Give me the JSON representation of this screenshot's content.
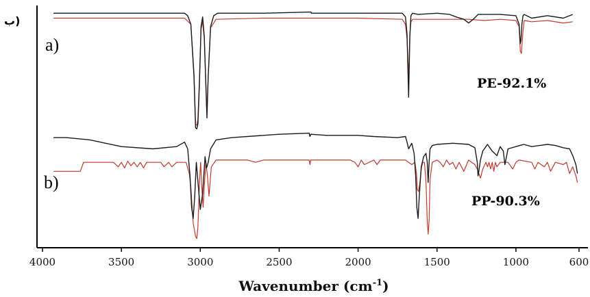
{
  "figure": {
    "corner_mark": "ب)"
  },
  "chart_data": {
    "type": "line",
    "title": "",
    "xlabel": "Wavenumber (cm-1)",
    "xlabel_main": "Wavenumber (cm",
    "xlabel_sup": "-1",
    "xlabel_close": ")",
    "ylabel": "",
    "x_reversed": true,
    "xlim": [
      4000,
      600
    ],
    "x_ticks": [
      4000,
      3500,
      3000,
      2500,
      2000,
      1500,
      1000,
      600
    ],
    "grid": false,
    "legend": "none",
    "panels": [
      {
        "label": "a)",
        "sample": "PE-92.1%",
        "series": [
          {
            "role": "black",
            "color": "#1a1a1a",
            "x": [
              3930,
              3700,
              3400,
              3100,
              3080,
              3060,
              3040,
              3030,
              3022,
              3015,
              3005,
              2995,
              2985,
              2975,
              2965,
              2958,
              2950,
              2935,
              2915,
              2890,
              2850,
              2600,
              2300,
              2295,
              2200,
              2000,
              1800,
              1720,
              1700,
              1690,
              1685,
              1680,
              1672,
              1665,
              1655,
              1620,
              1500,
              1420,
              1380,
              1330,
              1300,
              1270,
              1240,
              1100,
              1000,
              980,
              972,
              968,
              962,
              955,
              948,
              900,
              800,
              700,
              640
            ],
            "y": [
              97,
              97,
              97,
              97,
              95,
              88,
              45,
              3,
              2,
              6,
              40,
              86,
              94,
              78,
              38,
              11,
              45,
              86,
              95,
              97,
              97,
              97,
              98,
              97,
              97,
              97,
              97,
              97,
              94,
              80,
              55,
              28,
              78,
              95,
              97,
              96,
              97,
              96,
              94,
              92,
              89,
              92,
              96,
              96,
              95,
              88,
              72,
              75,
              88,
              95,
              96,
              93,
              95,
              93,
              96
            ]
          },
          {
            "role": "red",
            "color": "#c0392b",
            "x": [
              3930,
              3700,
              3400,
              3100,
              3060,
              3040,
              3030,
              3022,
              3015,
              3005,
              2995,
              2985,
              2975,
              2965,
              2958,
              2950,
              2935,
              2900,
              2600,
              2300,
              2000,
              1720,
              1700,
              1690,
              1680,
              1672,
              1665,
              1655,
              1500,
              1300,
              1200,
              1100,
              1000,
              980,
              972,
              965,
              955,
              948,
              900,
              800,
              700,
              640
            ],
            "y": [
              93,
              93,
              93,
              93,
              88,
              48,
              6,
              5,
              10,
              44,
              84,
              90,
              76,
              40,
              15,
              45,
              85,
              92,
              93,
              93,
              93,
              92,
              88,
              76,
              44,
              80,
              90,
              92,
              92,
              92,
              91,
              92,
              91,
              86,
              66,
              64,
              82,
              91,
              90,
              91,
              89,
              90
            ]
          }
        ]
      },
      {
        "label": "b)",
        "sample": "PP-90.3%",
        "series": [
          {
            "role": "black",
            "color": "#1a1a1a",
            "x": [
              3930,
              3850,
              3700,
              3500,
              3300,
              3150,
              3100,
              3080,
              3065,
              3055,
              3045,
              3035,
              3025,
              3012,
              3000,
              2985,
              2970,
              2960,
              2950,
              2935,
              2900,
              2800,
              2500,
              2310,
              2305,
              2300,
              2200,
              2000,
              1900,
              1750,
              1700,
              1690,
              1680,
              1660,
              1645,
              1635,
              1628,
              1620,
              1612,
              1600,
              1585,
              1570,
              1562,
              1556,
              1550,
              1544,
              1530,
              1500,
              1400,
              1300,
              1260,
              1245,
              1240,
              1235,
              1225,
              1210,
              1180,
              1150,
              1120,
              1100,
              1080,
              1070,
              1060,
              1050,
              1000,
              950,
              900,
              850,
              800,
              750,
              700,
              660,
              640,
              620,
              610
            ],
            "y": [
              92,
              92,
              90,
              84,
              82,
              84,
              88,
              82,
              58,
              30,
              20,
              40,
              70,
              48,
              28,
              42,
              75,
              65,
              70,
              82,
              90,
              92,
              95,
              96,
              93,
              95,
              94,
              94,
              93,
              92,
              93,
              88,
              82,
              87,
              78,
              58,
              30,
              20,
              40,
              66,
              75,
              78,
              70,
              52,
              70,
              82,
              85,
              86,
              87,
              86,
              83,
              70,
              58,
              62,
              72,
              80,
              86,
              80,
              76,
              84,
              80,
              68,
              75,
              82,
              84,
              86,
              84,
              85,
              86,
              85,
              83,
              82,
              76,
              68,
              60
            ]
          },
          {
            "role": "red",
            "color": "#c0392b",
            "x": [
              3930,
              3760,
              3740,
              3550,
              3520,
              3500,
              3480,
              3460,
              3440,
              3420,
              3400,
              3380,
              3360,
              3340,
              3320,
              3250,
              3230,
              3200,
              3180,
              3150,
              3090,
              3070,
              3060,
              3045,
              3030,
              3022,
              3015,
              3005,
              2998,
              2990,
              2982,
              2975,
              2965,
              2955,
              2945,
              2930,
              2900,
              2700,
              2650,
              2600,
              2310,
              2305,
              2300,
              2050,
              2020,
              2000,
              1980,
              1960,
              1900,
              1880,
              1860,
              1700,
              1680,
              1660,
              1640,
              1630,
              1625,
              1618,
              1610,
              1598,
              1590,
              1580,
              1570,
              1562,
              1556,
              1550,
              1544,
              1530,
              1500,
              1480,
              1460,
              1440,
              1420,
              1400,
              1380,
              1360,
              1330,
              1300,
              1280,
              1260,
              1245,
              1235,
              1225,
              1210,
              1190,
              1180,
              1170,
              1160,
              1150,
              1140,
              1130,
              1120,
              1100,
              1050,
              1020,
              1000,
              980,
              900,
              880,
              860,
              820,
              800,
              780,
              750,
              700,
              680,
              660,
              640,
              620,
              610
            ],
            "y": [
              62,
              62,
              70,
              70,
              66,
              70,
              65,
              71,
              67,
              70,
              66,
              70,
              65,
              70,
              70,
              70,
              66,
              70,
              66,
              70,
              70,
              60,
              48,
              16,
              4,
              2,
              12,
              52,
              70,
              46,
              30,
              48,
              70,
              58,
              40,
              66,
              72,
              72,
              70,
              72,
              72,
              68,
              72,
              72,
              70,
              66,
              72,
              68,
              72,
              68,
              72,
              72,
              70,
              68,
              70,
              60,
              46,
              44,
              50,
              66,
              70,
              70,
              54,
              18,
              6,
              18,
              55,
              70,
              72,
              70,
              66,
              72,
              68,
              70,
              64,
              70,
              62,
              72,
              70,
              68,
              64,
              60,
              56,
              64,
              70,
              66,
              70,
              64,
              70,
              62,
              70,
              66,
              70,
              70,
              64,
              70,
              72,
              70,
              64,
              70,
              66,
              70,
              62,
              70,
              68,
              70,
              60,
              66,
              58,
              52
            ]
          }
        ]
      }
    ]
  }
}
